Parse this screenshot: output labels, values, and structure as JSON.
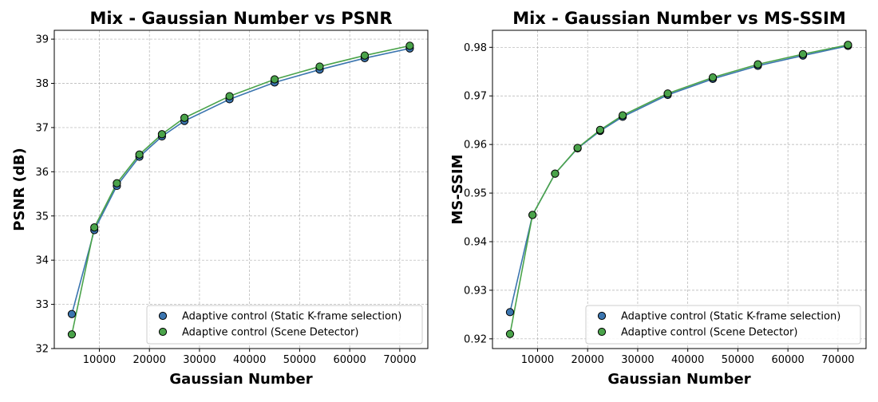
{
  "chart_data": [
    {
      "type": "line",
      "title": "Mix - Gaussian Number vs PSNR",
      "xlabel": "Gaussian Number",
      "ylabel": "PSNR (dB)",
      "xlim": [
        1000,
        75600
      ],
      "ylim": [
        32,
        39.2
      ],
      "xticks": [
        10000,
        20000,
        30000,
        40000,
        50000,
        60000,
        70000
      ],
      "yticks": [
        32,
        33,
        34,
        35,
        36,
        37,
        38,
        39
      ],
      "grid": true,
      "legend_position": "bottom-right",
      "x": [
        4500,
        9000,
        13500,
        18000,
        22500,
        27000,
        36000,
        45000,
        54000,
        63000,
        72000
      ],
      "series": [
        {
          "name": "Adaptive control (Static K-frame selection)",
          "color": "#3b75af",
          "values": [
            32.78,
            34.68,
            35.68,
            36.34,
            36.8,
            37.15,
            37.64,
            38.02,
            38.31,
            38.57,
            38.79
          ]
        },
        {
          "name": "Adaptive control (Scene Detector)",
          "color": "#4aa34a",
          "values": [
            32.32,
            34.74,
            35.74,
            36.39,
            36.85,
            37.22,
            37.71,
            38.09,
            38.38,
            38.63,
            38.85
          ]
        }
      ]
    },
    {
      "type": "line",
      "title": "Mix - Gaussian Number vs MS-SSIM",
      "xlabel": "Gaussian Number",
      "ylabel": "MS-SSIM",
      "xlim": [
        1000,
        75600
      ],
      "ylim": [
        0.918,
        0.9835
      ],
      "xticks": [
        10000,
        20000,
        30000,
        40000,
        50000,
        60000,
        70000
      ],
      "yticks": [
        0.92,
        0.93,
        0.94,
        0.95,
        0.96,
        0.97,
        0.98
      ],
      "grid": true,
      "legend_position": "bottom-right",
      "x": [
        4500,
        9000,
        13500,
        18000,
        22500,
        27000,
        36000,
        45000,
        54000,
        63000,
        72000
      ],
      "series": [
        {
          "name": "Adaptive control (Static K-frame selection)",
          "color": "#3b75af",
          "values": [
            0.9255,
            0.9455,
            0.954,
            0.9592,
            0.9628,
            0.9657,
            0.9702,
            0.9735,
            0.9762,
            0.9783,
            0.9803
          ]
        },
        {
          "name": "Adaptive control (Scene Detector)",
          "color": "#4aa34a",
          "values": [
            0.921,
            0.9455,
            0.954,
            0.9593,
            0.963,
            0.966,
            0.9705,
            0.9738,
            0.9765,
            0.9786,
            0.9805
          ]
        }
      ]
    }
  ]
}
